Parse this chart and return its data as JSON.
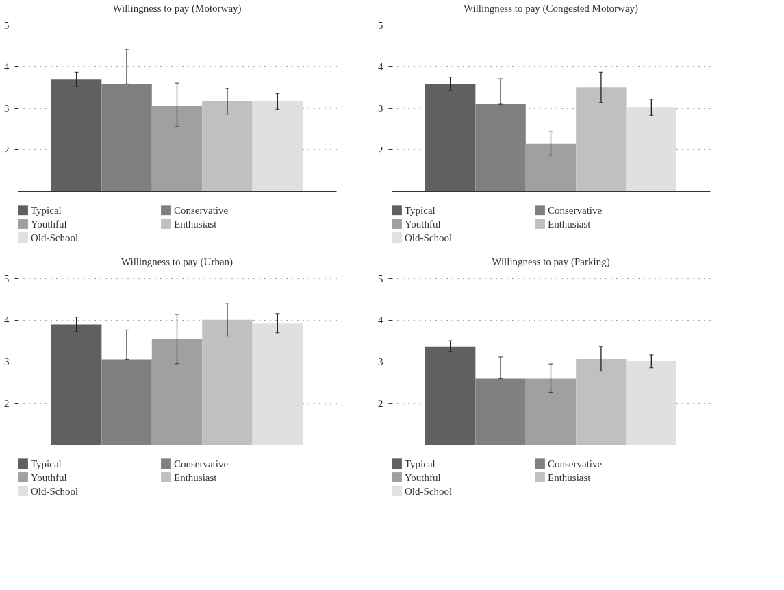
{
  "chart_data": [
    {
      "type": "bar",
      "title": "Willingness to pay (Motorway)",
      "categories": [
        null
      ],
      "ylim": [
        1,
        5.2
      ],
      "yticks": [
        2,
        3,
        4,
        5
      ],
      "grid": "y",
      "legend": "bottom",
      "series": [
        {
          "name": "Typical",
          "color": "#5f6160",
          "values": [
            3.68
          ],
          "errors": [
            [
              3.52,
              3.86
            ]
          ]
        },
        {
          "name": "Conservative",
          "color": "#7f8180",
          "values": [
            3.58
          ],
          "errors": [
            [
              3.58,
              4.41
            ]
          ]
        },
        {
          "name": "Youthful",
          "color": "#a0a0a0",
          "values": [
            3.06
          ],
          "errors": [
            [
              2.55,
              3.6
            ]
          ]
        },
        {
          "name": "Enthusiast",
          "color": "#c0c0be",
          "values": [
            3.17
          ],
          "errors": [
            [
              2.85,
              3.47
            ]
          ]
        },
        {
          "name": "Old-School",
          "color": "#e0e0e0",
          "values": [
            3.17
          ],
          "errors": [
            [
              2.97,
              3.35
            ]
          ]
        }
      ]
    },
    {
      "type": "bar",
      "title": "Willingness to pay (Congested Motorway)",
      "categories": [
        null
      ],
      "ylim": [
        1,
        5.2
      ],
      "yticks": [
        2,
        3,
        4,
        5
      ],
      "grid": "y",
      "legend": "bottom",
      "series": [
        {
          "name": "Typical",
          "color": "#5f6160",
          "values": [
            3.58
          ],
          "errors": [
            [
              3.42,
              3.74
            ]
          ]
        },
        {
          "name": "Conservative",
          "color": "#7f8180",
          "values": [
            3.09
          ],
          "errors": [
            [
              3.09,
              3.7
            ]
          ]
        },
        {
          "name": "Youthful",
          "color": "#a0a0a0",
          "values": [
            2.14
          ],
          "errors": [
            [
              1.85,
              2.43
            ]
          ]
        },
        {
          "name": "Enthusiast",
          "color": "#c0c0be",
          "values": [
            3.5
          ],
          "errors": [
            [
              3.13,
              3.86
            ]
          ]
        },
        {
          "name": "Old-School",
          "color": "#e0e0e0",
          "values": [
            3.02
          ],
          "errors": [
            [
              2.82,
              3.21
            ]
          ]
        }
      ]
    },
    {
      "type": "bar",
      "title": "Willingness to pay (Urban)",
      "categories": [
        null
      ],
      "ylim": [
        1,
        5.2
      ],
      "yticks": [
        2,
        3,
        4,
        5
      ],
      "grid": "y",
      "legend": "bottom",
      "series": [
        {
          "name": "Typical",
          "color": "#5f6160",
          "values": [
            3.89
          ],
          "errors": [
            [
              3.72,
              4.07
            ]
          ]
        },
        {
          "name": "Conservative",
          "color": "#7f8180",
          "values": [
            3.05
          ],
          "errors": [
            [
              3.05,
              3.76
            ]
          ]
        },
        {
          "name": "Youthful",
          "color": "#a0a0a0",
          "values": [
            3.54
          ],
          "errors": [
            [
              2.95,
              4.13
            ]
          ]
        },
        {
          "name": "Enthusiast",
          "color": "#c0c0be",
          "values": [
            4.0
          ],
          "errors": [
            [
              3.61,
              4.39
            ]
          ]
        },
        {
          "name": "Old-School",
          "color": "#e0e0e0",
          "values": [
            3.91
          ],
          "errors": [
            [
              3.69,
              4.15
            ]
          ]
        }
      ]
    },
    {
      "type": "bar",
      "title": "Willingness to pay (Parking)",
      "categories": [
        null
      ],
      "ylim": [
        1,
        5.2
      ],
      "yticks": [
        2,
        3,
        4,
        5
      ],
      "grid": "y",
      "legend": "bottom",
      "series": [
        {
          "name": "Typical",
          "color": "#5f6160",
          "values": [
            3.36
          ],
          "errors": [
            [
              3.24,
              3.5
            ]
          ]
        },
        {
          "name": "Conservative",
          "color": "#7f8180",
          "values": [
            2.59
          ],
          "errors": [
            [
              2.59,
              3.11
            ]
          ]
        },
        {
          "name": "Youthful",
          "color": "#a0a0a0",
          "values": [
            2.59
          ],
          "errors": [
            [
              2.26,
              2.94
            ]
          ]
        },
        {
          "name": "Enthusiast",
          "color": "#c0c0be",
          "values": [
            3.06
          ],
          "errors": [
            [
              2.77,
              3.36
            ]
          ]
        },
        {
          "name": "Old-School",
          "color": "#e0e0e0",
          "values": [
            3.01
          ],
          "errors": [
            [
              2.85,
              3.16
            ]
          ]
        }
      ]
    }
  ]
}
